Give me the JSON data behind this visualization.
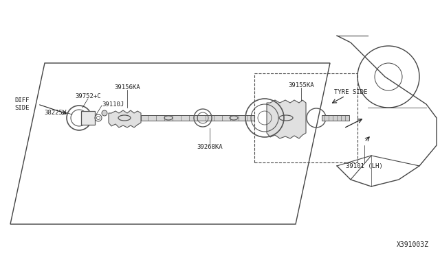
{
  "bg_color": "#ffffff",
  "diagram_border_color": "#333333",
  "line_color": "#444444",
  "part_color": "#555555",
  "text_color": "#222222",
  "fig_width": 6.4,
  "fig_height": 3.72,
  "dpi": 100,
  "watermark": "X391003Z",
  "labels": {
    "diff_side": "DIFF\nSIDE",
    "tyre_side": "TYRE SIDE",
    "p39752": "39752+C",
    "p39110": "39110J",
    "p38225": "38225W",
    "p39156": "39156KA",
    "p39268": "39268KA",
    "p39155": "39155KA",
    "p39101": "39101 (LH)"
  }
}
